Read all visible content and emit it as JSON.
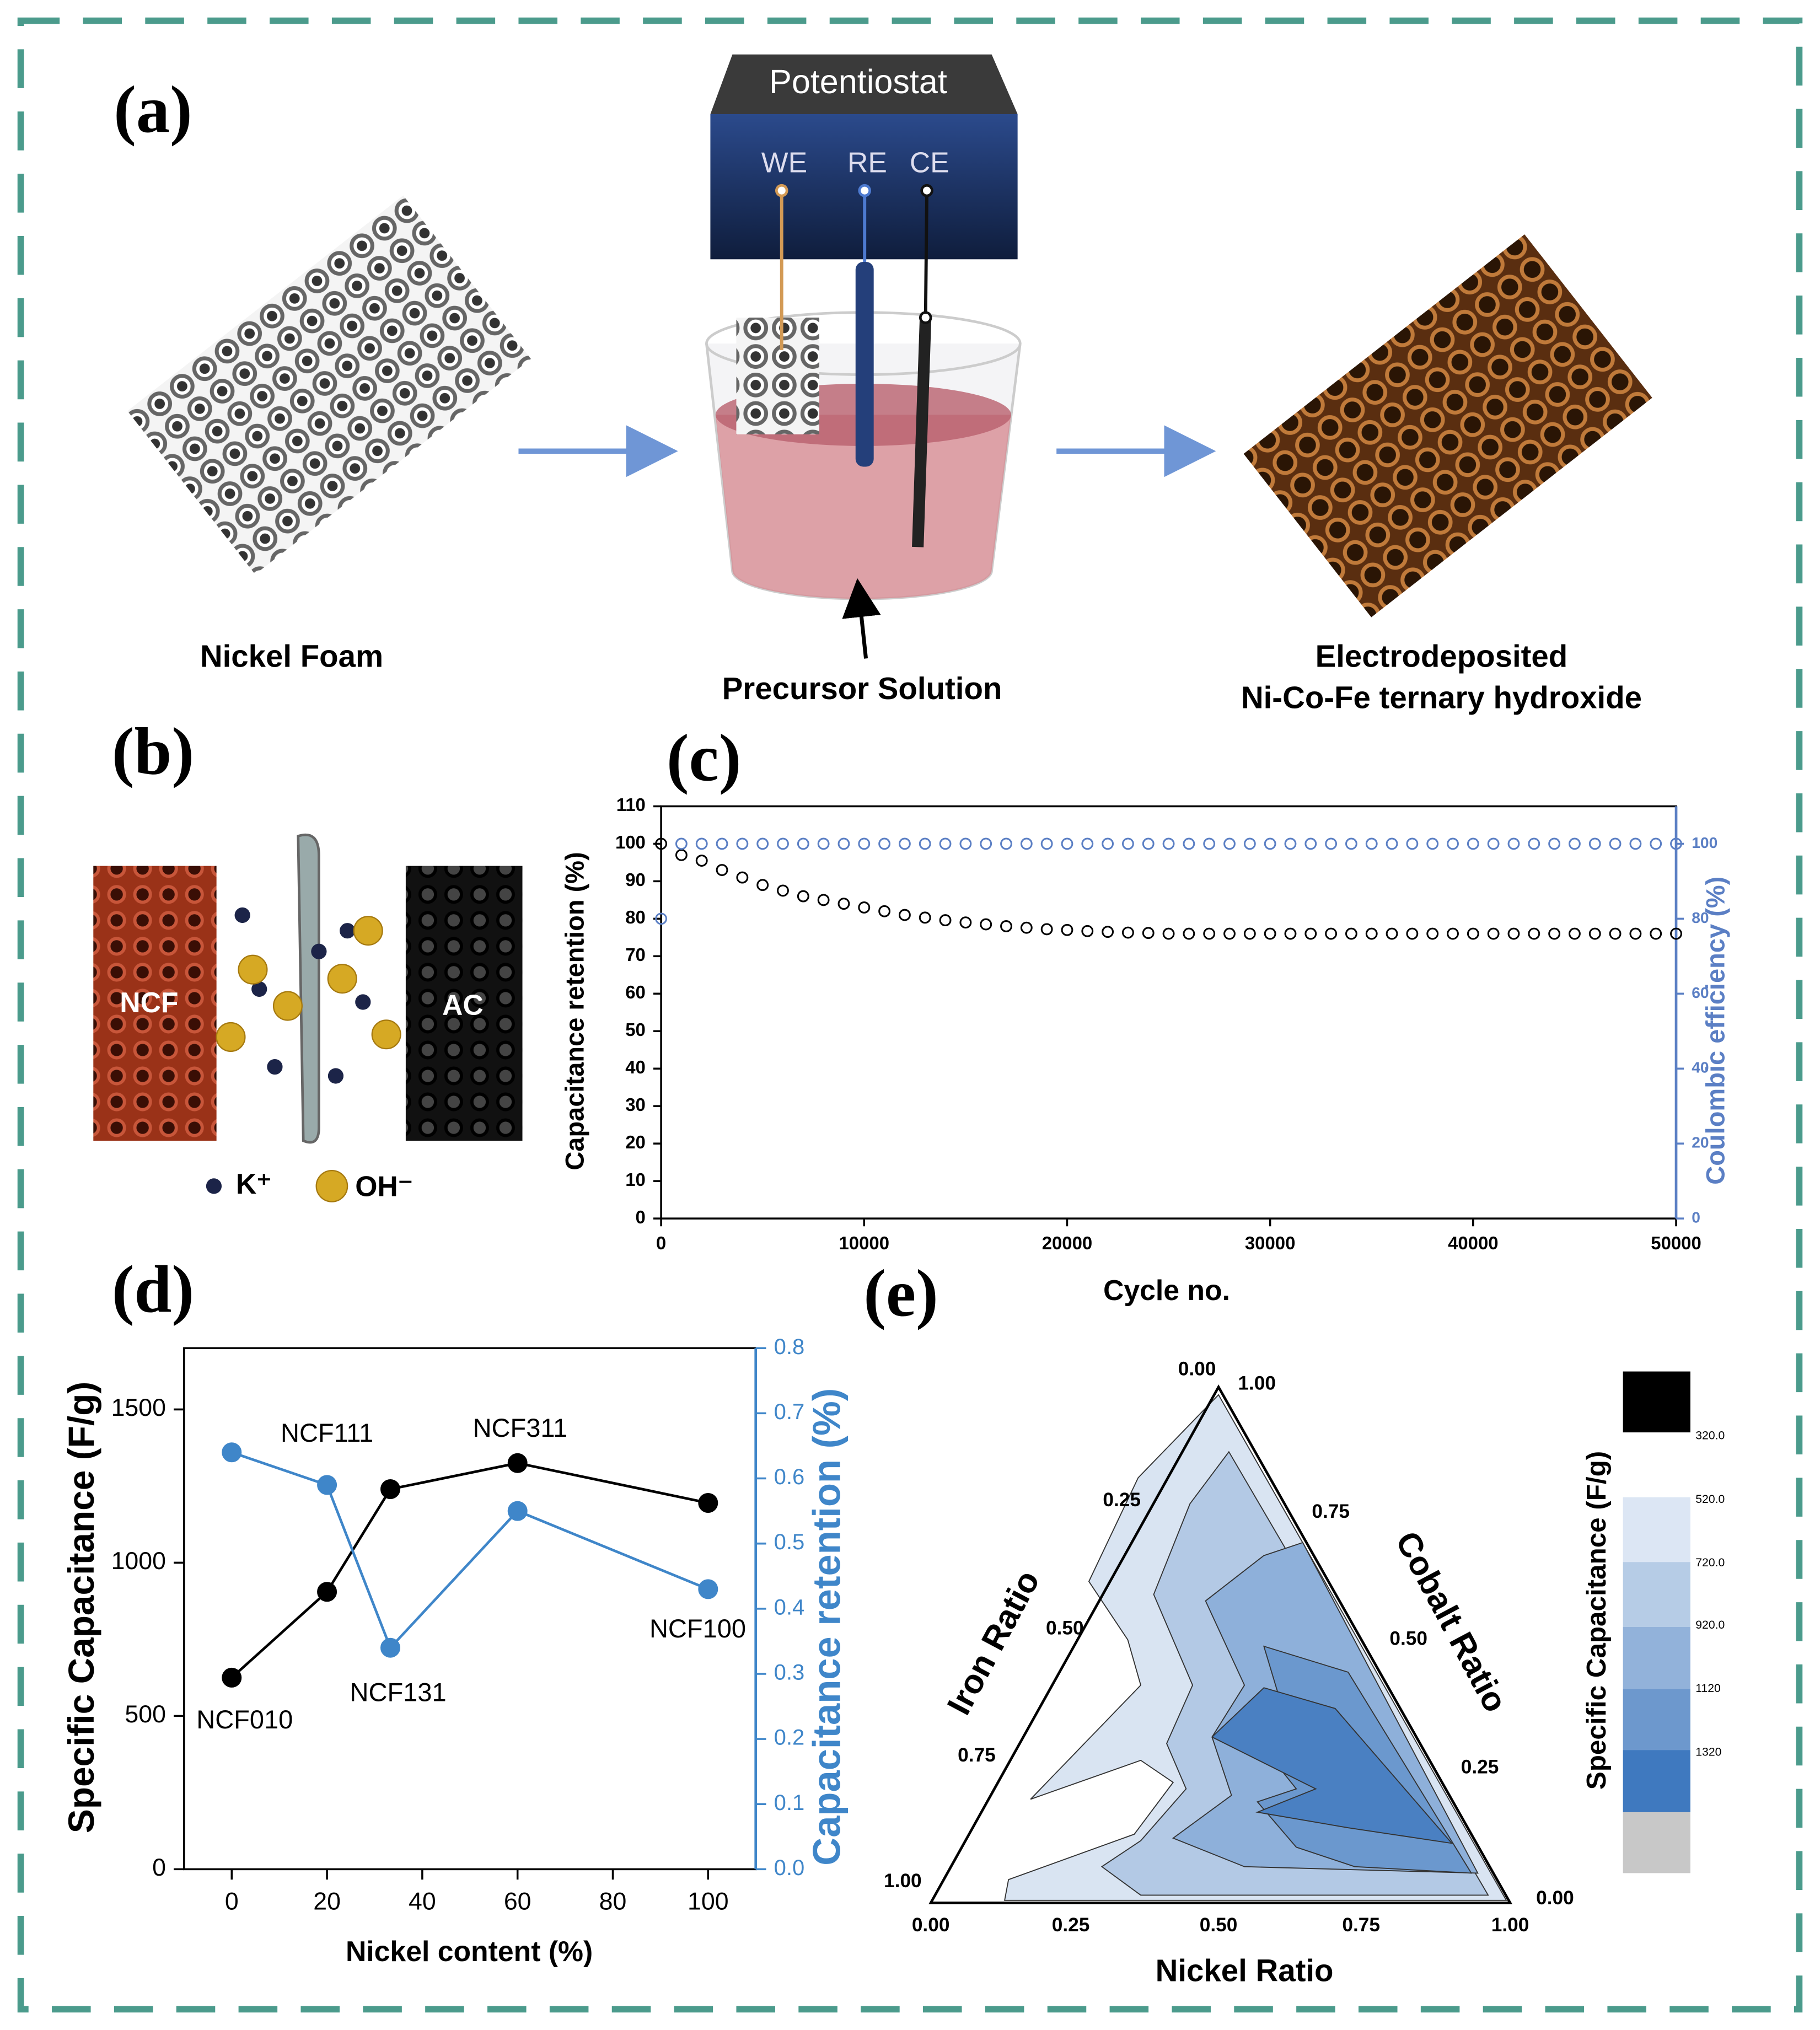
{
  "panel_a": {
    "label": "(a)",
    "device": "Potentiostat",
    "electrodes": [
      "WE",
      "RE",
      "CE"
    ],
    "captions": [
      "Nickel Foam",
      "Precursor Solution",
      "Electrodeposited",
      "Ni-Co-Fe ternary hydroxide"
    ]
  },
  "panel_b": {
    "label": "(b)",
    "electrodes": [
      "NCF",
      "AC"
    ],
    "legend": [
      "K⁺",
      "OH⁻"
    ]
  },
  "chart_data": [
    {
      "type": "scatter",
      "label": "(c)",
      "xlabel": "Cycle no.",
      "ylabel": "Capacitance retention (%)",
      "y2label": "Coulombic efficiency (%)",
      "x": [
        0,
        1000,
        2000,
        3000,
        4000,
        5000,
        6000,
        7000,
        8000,
        9000,
        10000,
        11000,
        12000,
        13000,
        14000,
        15000,
        16000,
        17000,
        18000,
        19000,
        20000,
        21000,
        22000,
        23000,
        24000,
        25000,
        26000,
        27000,
        28000,
        29000,
        30000,
        31000,
        32000,
        33000,
        34000,
        35000,
        36000,
        37000,
        38000,
        39000,
        40000,
        41000,
        42000,
        43000,
        44000,
        45000,
        46000,
        47000,
        48000,
        49000,
        50000
      ],
      "series": [
        {
          "color": "#000000",
          "values": [
            100,
            97,
            95.5,
            93,
            91,
            89,
            87.5,
            86,
            85,
            84,
            83,
            82,
            81,
            80.3,
            79.6,
            79,
            78.5,
            78,
            77.6,
            77.2,
            77,
            76.7,
            76.5,
            76.3,
            76.2,
            76,
            76,
            76,
            76,
            76,
            76,
            76,
            76,
            76,
            76,
            76,
            76,
            76,
            76,
            76,
            76,
            76,
            76,
            76,
            76,
            76,
            76,
            76,
            76,
            76,
            76
          ]
        },
        {
          "color": "#5b7fc4",
          "axis": "y2",
          "values": [
            80,
            100,
            100,
            100,
            100,
            100,
            100,
            100,
            100,
            100,
            100,
            100,
            100,
            100,
            100,
            100,
            100,
            100,
            100,
            100,
            100,
            100,
            100,
            100,
            100,
            100,
            100,
            100,
            100,
            100,
            100,
            100,
            100,
            100,
            100,
            100,
            100,
            100,
            100,
            100,
            100,
            100,
            100,
            100,
            100,
            100,
            100,
            100,
            100,
            100,
            100
          ]
        }
      ],
      "xlim": [
        0,
        50000
      ],
      "xticks": [
        0,
        10000,
        20000,
        30000,
        40000,
        50000
      ],
      "ylim": [
        0,
        110
      ],
      "yticks": [
        0,
        10,
        20,
        30,
        40,
        50,
        60,
        70,
        80,
        90,
        100,
        110
      ],
      "y2lim": [
        0,
        110
      ],
      "y2ticks": [
        0,
        20,
        40,
        60,
        80,
        100
      ],
      "y2color": "#5b7fc4"
    },
    {
      "type": "line",
      "label": "(d)",
      "xlabel": "Nickel content  (%)",
      "ylabel": "Specific Capacitance (F/g)",
      "y2label": "Capacitance retention (%)",
      "x": [
        0,
        20,
        33.3,
        60,
        100
      ],
      "point_labels": [
        "NCF010",
        "NCF111",
        "NCF131",
        "NCF311",
        "NCF100"
      ],
      "series": [
        {
          "color": "#000000",
          "values": [
            625,
            905,
            1240,
            1325,
            1195
          ]
        },
        {
          "color": "#3f86c9",
          "axis": "y2",
          "values": [
            0.64,
            0.59,
            0.34,
            0.55,
            0.43
          ]
        }
      ],
      "xlim": [
        -10,
        110
      ],
      "xticks": [
        0,
        20,
        40,
        60,
        80,
        100
      ],
      "ylim": [
        0,
        1700
      ],
      "yticks": [
        0,
        500,
        1000,
        1500
      ],
      "y2lim": [
        0,
        0.8
      ],
      "y2ticks": [
        {
          "value": 0,
          "label": "0.0"
        },
        0.1,
        0.2,
        0.3,
        0.4,
        0.5,
        0.6,
        0.7,
        0.8
      ],
      "y2color": "#3f86c9"
    }
  ],
  "panel_e": {
    "label": "(e)",
    "axes": {
      "nickel": "Nickel Ratio",
      "cobalt": "Cobalt Ratio",
      "iron": "Iron Ratio"
    },
    "ticks": [
      "0.00",
      "0.25",
      "0.50",
      "0.75",
      "1.00"
    ],
    "colorbar": {
      "title": "Specific Capacitance (F/g)",
      "labels": [
        "320.0",
        "520.0",
        "720.0",
        "920.0",
        "1120",
        "1320"
      ]
    }
  }
}
